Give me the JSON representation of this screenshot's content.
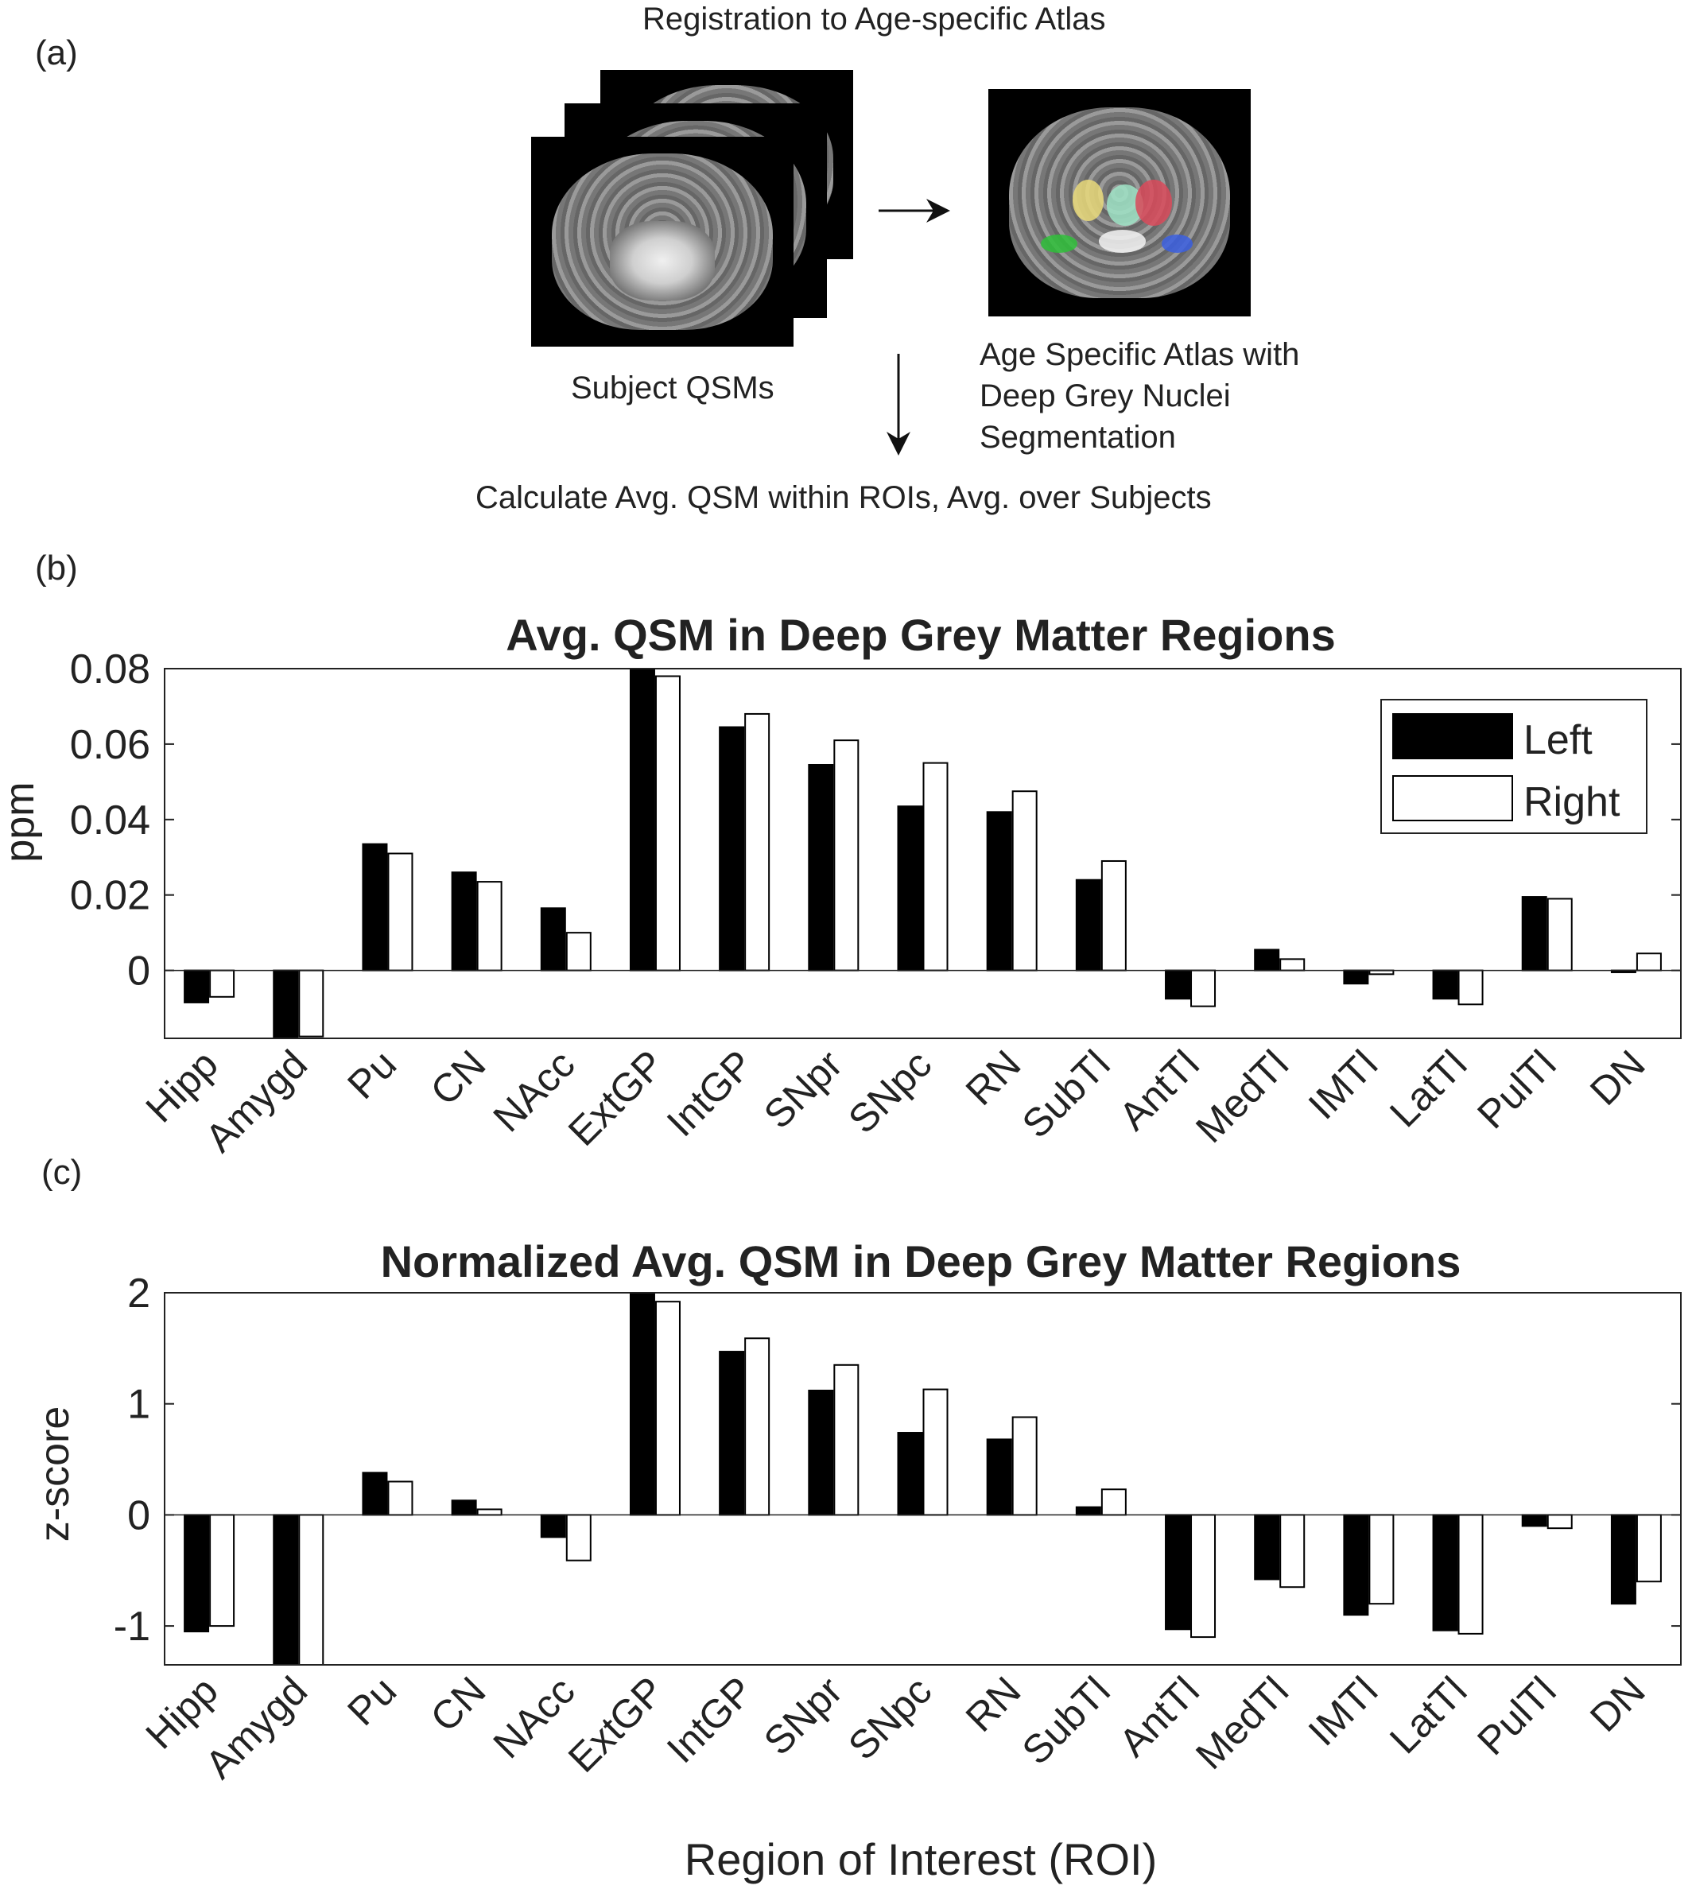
{
  "panel_labels": {
    "a": "(a)",
    "b": "(b)",
    "c": "(c)"
  },
  "diagram": {
    "title": "Registration to Age-specific Atlas",
    "subject_label": "Subject QSMs",
    "atlas_label": "Age Specific Atlas with Deep Grey Nuclei Segmentation",
    "bottom_text": "Calculate Avg. QSM within ROIs, Avg. over Subjects"
  },
  "x_axis_label": "Region of Interest (ROI)",
  "chart_data": [
    {
      "type": "bar",
      "title": "Avg. QSM in Deep Grey Matter Regions",
      "xlabel": "",
      "ylabel": "ppm",
      "ylim": [
        -0.018,
        0.08
      ],
      "yticks": [
        0,
        0.02,
        0.04,
        0.06,
        0.08
      ],
      "ytick_labels": [
        "0",
        "0.02",
        "0.04",
        "0.06",
        "0.08"
      ],
      "categories": [
        "Hipp",
        "Amygd",
        "Pu",
        "CN",
        "NAcc",
        "ExtGP",
        "IntGP",
        "SNpr",
        "SNpc",
        "RN",
        "SubTl",
        "AntTl",
        "MedTl",
        "IMTl",
        "LatTl",
        "PulTl",
        "DN"
      ],
      "series": [
        {
          "name": "Left",
          "color": "#000000",
          "values": [
            -0.0085,
            -0.018,
            0.0335,
            0.026,
            0.0165,
            0.081,
            0.0645,
            0.0545,
            0.0435,
            0.042,
            0.024,
            -0.0075,
            0.0055,
            -0.0035,
            -0.0075,
            0.0195,
            -0.0005
          ]
        },
        {
          "name": "Right",
          "color": "#ffffff",
          "values": [
            -0.007,
            -0.0175,
            0.031,
            0.0235,
            0.01,
            0.078,
            0.068,
            0.061,
            0.055,
            0.0475,
            0.029,
            -0.0095,
            0.003,
            -0.001,
            -0.009,
            0.019,
            0.0045
          ]
        }
      ],
      "legend": {
        "position": "top-right",
        "entries": [
          "Left",
          "Right"
        ]
      }
    },
    {
      "type": "bar",
      "title": "Normalized Avg. QSM in Deep Grey Matter Regions",
      "xlabel": "Region of Interest (ROI)",
      "ylabel": "z-score",
      "ylim": [
        -1.35,
        2
      ],
      "yticks": [
        -1,
        0,
        1,
        2
      ],
      "ytick_labels": [
        "-1",
        "0",
        "1",
        "2"
      ],
      "categories": [
        "Hipp",
        "Amygd",
        "Pu",
        "CN",
        "NAcc",
        "ExtGP",
        "IntGP",
        "SNpr",
        "SNpc",
        "RN",
        "SubTl",
        "AntTl",
        "MedTl",
        "IMTl",
        "LatTl",
        "PulTl",
        "DN"
      ],
      "series": [
        {
          "name": "Left",
          "color": "#000000",
          "values": [
            -1.05,
            -1.4,
            0.38,
            0.13,
            -0.2,
            2.05,
            1.47,
            1.12,
            0.74,
            0.68,
            0.07,
            -1.03,
            -0.58,
            -0.9,
            -1.04,
            -0.1,
            -0.8
          ]
        },
        {
          "name": "Right",
          "color": "#ffffff",
          "values": [
            -1.0,
            -1.35,
            0.3,
            0.05,
            -0.41,
            1.92,
            1.59,
            1.35,
            1.13,
            0.88,
            0.23,
            -1.1,
            -0.65,
            -0.8,
            -1.07,
            -0.12,
            -0.6
          ]
        }
      ]
    }
  ]
}
